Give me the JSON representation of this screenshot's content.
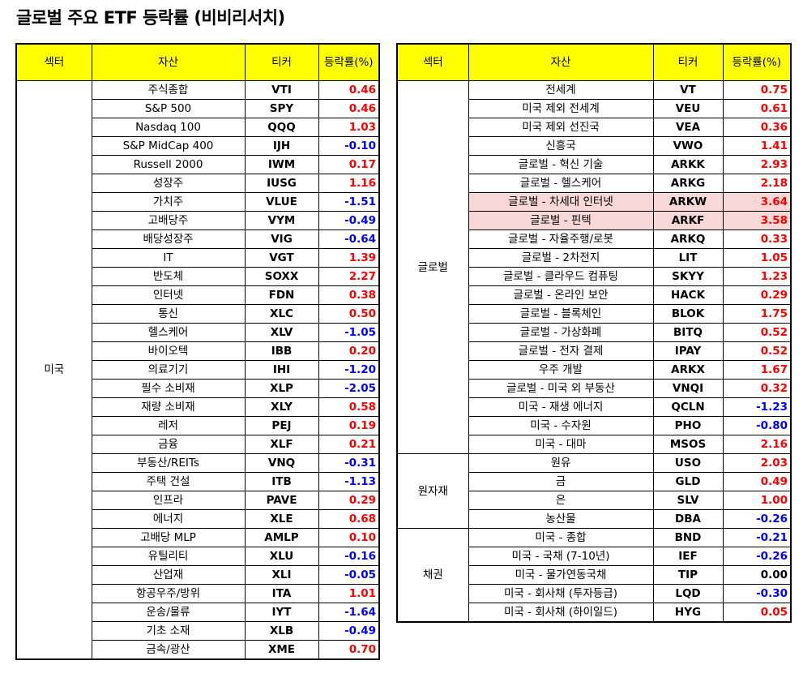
{
  "title": "글로벌 주요 ETF 등락률 (비비리서치)",
  "colors": {
    "header_bg": "#ffff00",
    "positive": "#ff0000",
    "negative": "#0000ff",
    "highlight": "#f8d7d7"
  },
  "headers": {
    "sector": "섹터",
    "asset": "자산",
    "ticker": "티커",
    "rate": "등락률(%)"
  },
  "left": {
    "groups": [
      {
        "sector": "미국",
        "rows": [
          {
            "asset": "주식종합",
            "ticker": "VTI",
            "rate": "0.46"
          },
          {
            "asset": "S&P 500",
            "ticker": "SPY",
            "rate": "0.46"
          },
          {
            "asset": "Nasdaq 100",
            "ticker": "QQQ",
            "rate": "1.03"
          },
          {
            "asset": "S&P MidCap 400",
            "ticker": "IJH",
            "rate": "-0.10"
          },
          {
            "asset": "Russell 2000",
            "ticker": "IWM",
            "rate": "0.17"
          },
          {
            "asset": "성장주",
            "ticker": "IUSG",
            "rate": "1.16"
          },
          {
            "asset": "가치주",
            "ticker": "VLUE",
            "rate": "-1.51"
          },
          {
            "asset": "고배당주",
            "ticker": "VYM",
            "rate": "-0.49"
          },
          {
            "asset": "배당성장주",
            "ticker": "VIG",
            "rate": "-0.64"
          },
          {
            "asset": "IT",
            "ticker": "VGT",
            "rate": "1.39"
          },
          {
            "asset": "반도체",
            "ticker": "SOXX",
            "rate": "2.27"
          },
          {
            "asset": "인터넷",
            "ticker": "FDN",
            "rate": "0.38"
          },
          {
            "asset": "통신",
            "ticker": "XLC",
            "rate": "0.50"
          },
          {
            "asset": "헬스케어",
            "ticker": "XLV",
            "rate": "-1.05"
          },
          {
            "asset": "바이오텍",
            "ticker": "IBB",
            "rate": "0.20"
          },
          {
            "asset": "의료기기",
            "ticker": "IHI",
            "rate": "-1.20"
          },
          {
            "asset": "필수 소비재",
            "ticker": "XLP",
            "rate": "-2.05"
          },
          {
            "asset": "재량 소비재",
            "ticker": "XLY",
            "rate": "0.58"
          },
          {
            "asset": "레저",
            "ticker": "PEJ",
            "rate": "0.19"
          },
          {
            "asset": "금융",
            "ticker": "XLF",
            "rate": "0.21"
          },
          {
            "asset": "부동산/REITs",
            "ticker": "VNQ",
            "rate": "-0.31"
          },
          {
            "asset": "주택 건설",
            "ticker": "ITB",
            "rate": "-1.13"
          },
          {
            "asset": "인프라",
            "ticker": "PAVE",
            "rate": "0.29"
          },
          {
            "asset": "에너지",
            "ticker": "XLE",
            "rate": "0.68"
          },
          {
            "asset": "고배당 MLP",
            "ticker": "AMLP",
            "rate": "0.10"
          },
          {
            "asset": "유틸리티",
            "ticker": "XLU",
            "rate": "-0.16"
          },
          {
            "asset": "산업재",
            "ticker": "XLI",
            "rate": "-0.05"
          },
          {
            "asset": "항공우주/방위",
            "ticker": "ITA",
            "rate": "1.01"
          },
          {
            "asset": "운송/물류",
            "ticker": "IYT",
            "rate": "-1.64"
          },
          {
            "asset": "기초 소재",
            "ticker": "XLB",
            "rate": "-0.49"
          },
          {
            "asset": "금속/광산",
            "ticker": "XME",
            "rate": "0.70"
          }
        ]
      }
    ]
  },
  "right": {
    "groups": [
      {
        "sector": "글로벌",
        "rows": [
          {
            "asset": "전세계",
            "ticker": "VT",
            "rate": "0.75"
          },
          {
            "asset": "미국 제외 전세계",
            "ticker": "VEU",
            "rate": "0.61"
          },
          {
            "asset": "미국 제외 선진국",
            "ticker": "VEA",
            "rate": "0.36"
          },
          {
            "asset": "신흥국",
            "ticker": "VWO",
            "rate": "1.41"
          },
          {
            "asset": "글로벌 - 혁신 기술",
            "ticker": "ARKK",
            "rate": "2.93"
          },
          {
            "asset": "글로벌 - 헬스케어",
            "ticker": "ARKG",
            "rate": "2.18"
          },
          {
            "asset": "글로벌 - 차세대 인터넷",
            "ticker": "ARKW",
            "rate": "3.64",
            "highlight": true
          },
          {
            "asset": "글로벌 - 핀텍",
            "ticker": "ARKF",
            "rate": "3.58",
            "highlight": true
          },
          {
            "asset": "글로벌 - 자율주행/로봇",
            "ticker": "ARKQ",
            "rate": "0.33"
          },
          {
            "asset": "글로벌 - 2차전지",
            "ticker": "LIT",
            "rate": "1.05"
          },
          {
            "asset": "글로벌 - 클라우드 컴퓨팅",
            "ticker": "SKYY",
            "rate": "1.23"
          },
          {
            "asset": "글로벌 - 온라인 보안",
            "ticker": "HACK",
            "rate": "0.29"
          },
          {
            "asset": "글로벌 - 블록체인",
            "ticker": "BLOK",
            "rate": "1.75"
          },
          {
            "asset": "글로벌 - 가상화폐",
            "ticker": "BITQ",
            "rate": "0.52"
          },
          {
            "asset": "글로벌 - 전자 결제",
            "ticker": "IPAY",
            "rate": "0.52"
          },
          {
            "asset": "우주 개발",
            "ticker": "ARKX",
            "rate": "1.67"
          },
          {
            "asset": "글로벌 - 미국 외 부동산",
            "ticker": "VNQI",
            "rate": "0.32"
          },
          {
            "asset": "미국 - 재생 에너지",
            "ticker": "QCLN",
            "rate": "-1.23"
          },
          {
            "asset": "미국 - 수자원",
            "ticker": "PHO",
            "rate": "-0.80"
          },
          {
            "asset": "미국 - 대마",
            "ticker": "MSOS",
            "rate": "2.16"
          }
        ]
      },
      {
        "sector": "원자재",
        "rows": [
          {
            "asset": "원유",
            "ticker": "USO",
            "rate": "2.03"
          },
          {
            "asset": "금",
            "ticker": "GLD",
            "rate": "0.49"
          },
          {
            "asset": "은",
            "ticker": "SLV",
            "rate": "1.00"
          },
          {
            "asset": "농산물",
            "ticker": "DBA",
            "rate": "-0.26"
          }
        ]
      },
      {
        "sector": "채권",
        "rows": [
          {
            "asset": "미국 - 종합",
            "ticker": "BND",
            "rate": "-0.21"
          },
          {
            "asset": "미국 - 국채 (7-10년)",
            "ticker": "IEF",
            "rate": "-0.26"
          },
          {
            "asset": "미국 - 물가연동국채",
            "ticker": "TIP",
            "rate": "0.00"
          },
          {
            "asset": "미국 - 회사채 (투자등급)",
            "ticker": "LQD",
            "rate": "-0.30"
          },
          {
            "asset": "미국 - 회사채 (하이일드)",
            "ticker": "HYG",
            "rate": "0.05"
          }
        ]
      }
    ]
  }
}
